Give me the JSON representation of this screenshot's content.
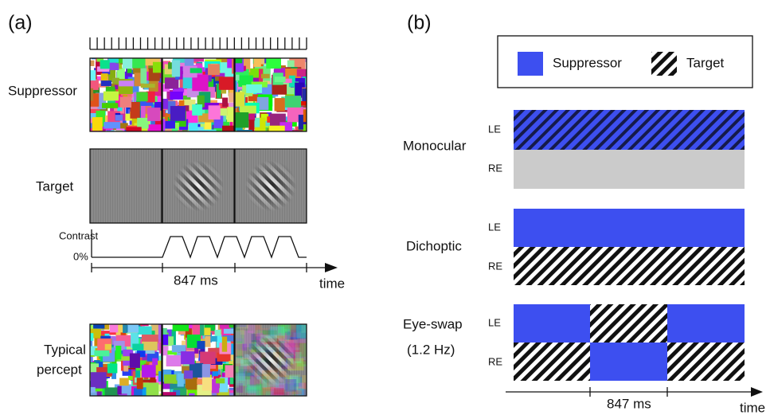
{
  "panel_a": {
    "label": "(a)",
    "suppressor": "Suppressor",
    "target": "Target",
    "contrast": "Contrast",
    "zero": "0%",
    "duration": "847 ms",
    "time": "time",
    "percept_lines": [
      "Typical",
      "percept"
    ]
  },
  "panel_b": {
    "label": "(b)",
    "legend": {
      "suppressor": "Suppressor",
      "target": "Target"
    },
    "conditions": [
      {
        "name_lines": [
          "Monocular"
        ],
        "eyes": [
          "LE",
          "RE"
        ]
      },
      {
        "name_lines": [
          "Dichoptic"
        ],
        "eyes": [
          "LE",
          "RE"
        ]
      },
      {
        "name_lines": [
          "Eye-swap",
          "(1.2 Hz)"
        ],
        "eyes": [
          "LE",
          "RE"
        ]
      }
    ],
    "duration": "847 ms",
    "time": "time"
  }
}
